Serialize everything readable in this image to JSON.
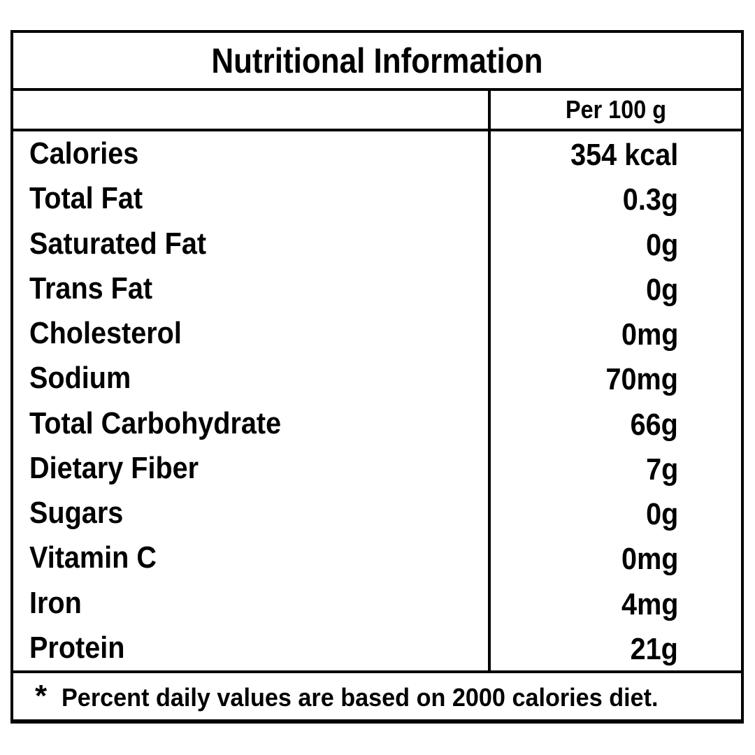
{
  "title": "Nutritional Information",
  "columns": {
    "amount_header": "Per 100 g"
  },
  "rows": [
    {
      "label": "Calories",
      "value": "354 kcal"
    },
    {
      "label": "Total Fat",
      "value": "0.3g"
    },
    {
      "label": "Saturated Fat",
      "value": "0g"
    },
    {
      "label": "Trans Fat",
      "value": "0g"
    },
    {
      "label": "Cholesterol",
      "value": "0mg"
    },
    {
      "label": "Sodium",
      "value": "70mg"
    },
    {
      "label": "Total Carbohydrate",
      "value": "66g"
    },
    {
      "label": "Dietary Fiber",
      "value": "7g"
    },
    {
      "label": "Sugars",
      "value": "0g"
    },
    {
      "label": "Vitamin C",
      "value": "0mg"
    },
    {
      "label": "Iron",
      "value": "4mg"
    },
    {
      "label": "Protein",
      "value": "21g"
    }
  ],
  "footnote": {
    "marker": "*",
    "text": "Percent daily values are based on 2000 calories diet."
  },
  "colors": {
    "border": "#000000",
    "background": "#ffffff",
    "text": "#000000"
  }
}
